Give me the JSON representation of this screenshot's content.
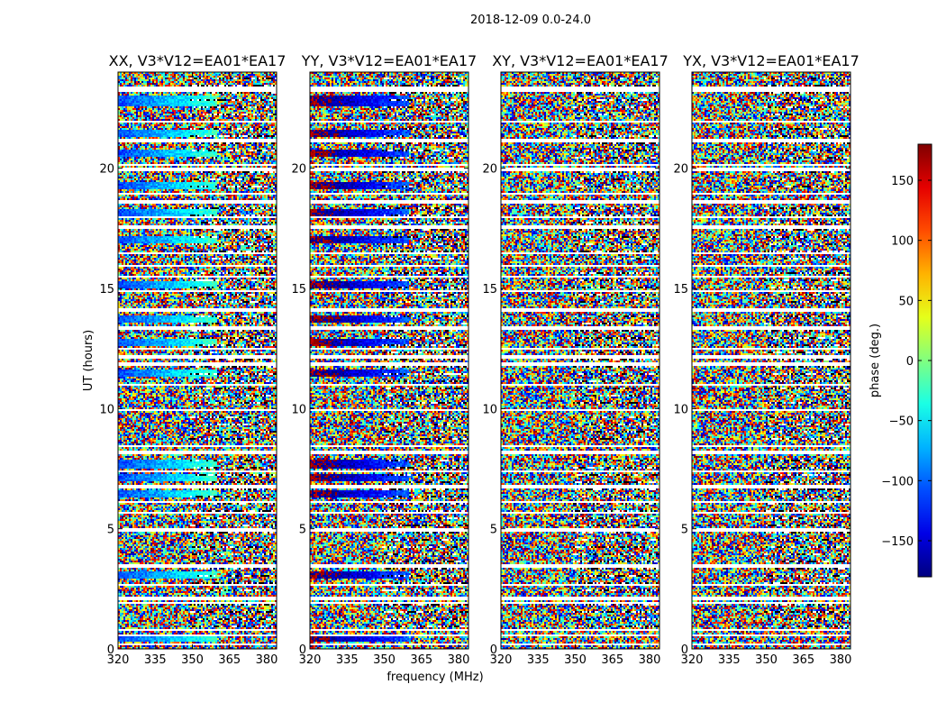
{
  "chart_data": {
    "type": "heatmap",
    "suptitle": "2018-12-09 0.0-24.0",
    "xlabel": "frequency (MHz)",
    "ylabel": "UT (hours)",
    "xlim": [
      320,
      384
    ],
    "ylim": [
      0,
      24
    ],
    "xticks": [
      320,
      335,
      350,
      365,
      380
    ],
    "yticks": [
      0,
      5,
      10,
      15,
      20
    ],
    "panels": [
      {
        "title": "XX, V3*V12=EA01*EA17",
        "polarization": "XX",
        "coherent_phase": -110
      },
      {
        "title": "YY, V3*V12=EA01*EA17",
        "polarization": "YY",
        "coherent_phase": 170
      },
      {
        "title": "XY, V3*V12=EA01*EA17",
        "polarization": "XY",
        "coherent_phase": null
      },
      {
        "title": "YX, V3*V12=EA01*EA17",
        "polarization": "YX",
        "coherent_phase": null
      }
    ],
    "coherent_bands_ut": [
      [
        22.6,
        23.0
      ],
      [
        21.3,
        21.6
      ],
      [
        20.5,
        20.8
      ],
      [
        19.1,
        19.4
      ],
      [
        18.0,
        18.3
      ],
      [
        16.9,
        17.2
      ],
      [
        15.0,
        15.3
      ],
      [
        13.6,
        13.9
      ],
      [
        12.6,
        12.9
      ],
      [
        11.3,
        11.6
      ],
      [
        7.5,
        7.9
      ],
      [
        7.0,
        7.3
      ],
      [
        6.3,
        6.6
      ],
      [
        2.9,
        3.2
      ],
      [
        0.3,
        0.6
      ]
    ],
    "flagged_gaps_ut": [
      [
        23.2,
        23.4
      ],
      [
        21.9,
        22.0
      ],
      [
        21.05,
        21.2
      ],
      [
        20.1,
        20.2
      ],
      [
        19.9,
        20.0
      ],
      [
        18.9,
        19.0
      ],
      [
        18.55,
        18.7
      ],
      [
        17.95,
        18.0
      ],
      [
        17.5,
        17.6
      ],
      [
        16.4,
        16.5
      ],
      [
        15.9,
        16.0
      ],
      [
        15.45,
        15.55
      ],
      [
        14.85,
        14.95
      ],
      [
        14.05,
        14.15
      ],
      [
        13.3,
        13.4
      ],
      [
        12.45,
        12.55
      ],
      [
        12.1,
        12.2
      ],
      [
        11.8,
        11.9
      ],
      [
        10.95,
        11.05
      ],
      [
        9.9,
        10.0
      ],
      [
        8.4,
        8.5
      ],
      [
        8.1,
        8.25
      ],
      [
        7.35,
        7.45
      ],
      [
        6.7,
        6.85
      ],
      [
        6.05,
        6.15
      ],
      [
        5.6,
        5.7
      ],
      [
        4.9,
        5.0
      ],
      [
        3.4,
        3.55
      ],
      [
        2.6,
        2.7
      ],
      [
        2.05,
        2.15
      ],
      [
        1.85,
        1.95
      ],
      [
        0.75,
        0.85
      ],
      [
        0.55,
        0.6
      ],
      [
        0.15,
        0.25
      ]
    ],
    "colorbar": {
      "label": "phase (deg.)",
      "vmin": -180,
      "vmax": 180,
      "ticks": [
        150,
        100,
        50,
        0,
        -50,
        -100,
        -150
      ],
      "tick_labels": [
        "150",
        "100",
        "50",
        "0",
        "−50",
        "−100",
        "−150"
      ],
      "colormap": "jet"
    }
  }
}
